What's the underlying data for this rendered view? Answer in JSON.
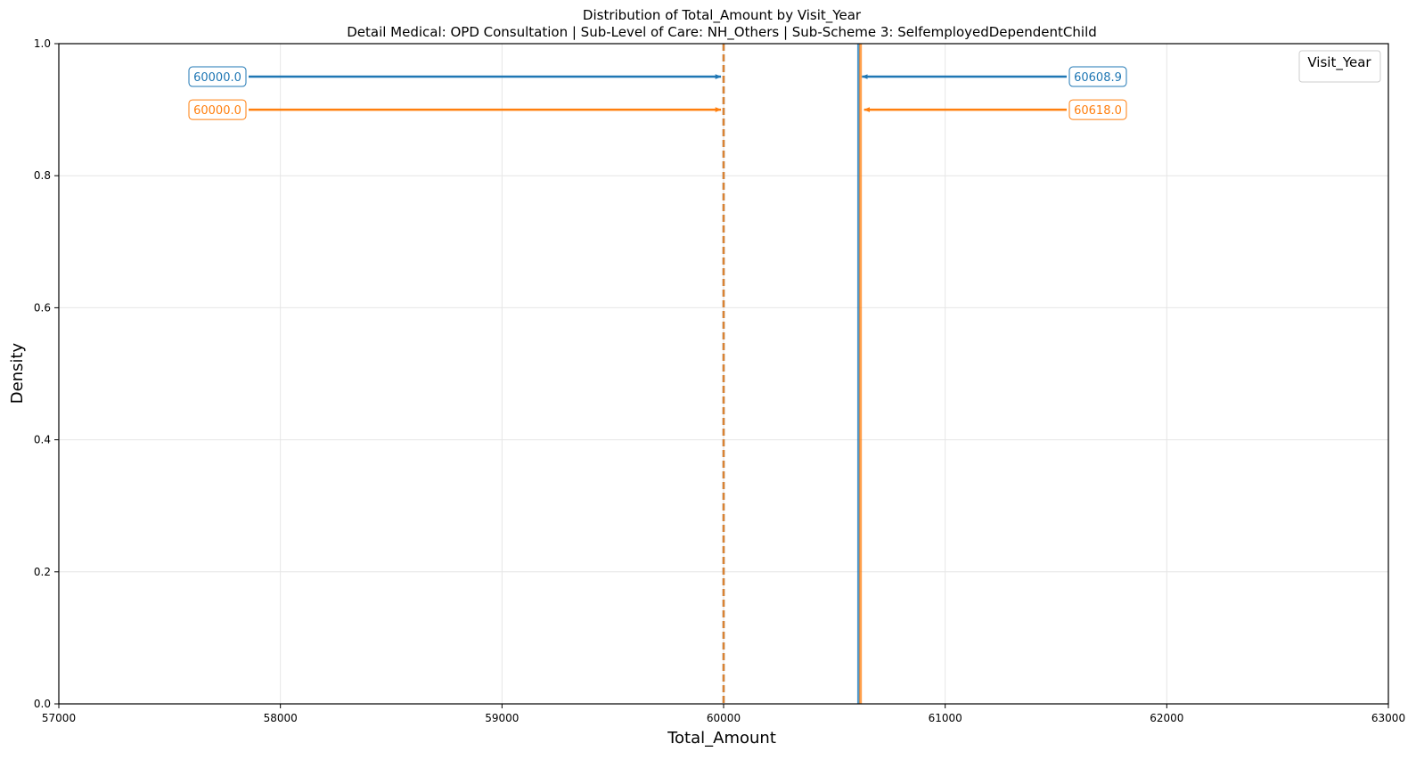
{
  "chart_data": {
    "type": "line",
    "title": "Distribution of Total_Amount by Visit_Year",
    "subtitle": "Detail Medical: OPD Consultation | Sub-Level of Care: NH_Others | Sub-Scheme 3: SelfemployedDependentChild",
    "xlabel": "Total_Amount",
    "ylabel": "Density",
    "xlim": [
      57000,
      63000
    ],
    "ylim": [
      0,
      1.0
    ],
    "xticks": [
      57000,
      58000,
      59000,
      60000,
      61000,
      62000,
      63000
    ],
    "xtick_labels": [
      "57000",
      "58000",
      "59000",
      "60000",
      "61000",
      "62000",
      "63000"
    ],
    "yticks": [
      0.0,
      0.2,
      0.4,
      0.6,
      0.8,
      1.0
    ],
    "ytick_labels": [
      "0.0",
      "0.2",
      "0.4",
      "0.6",
      "0.8",
      "1.0"
    ],
    "grid": true,
    "legend": {
      "title": "Visit_Year",
      "placement": "upper right",
      "entries": []
    },
    "series": [
      {
        "color": "#1f77b4",
        "mean": 60608.9,
        "median": 60000.0,
        "mean_label": "60608.9",
        "median_label": "60000.0",
        "annotation_y": 0.95
      },
      {
        "color": "#ff7f0e",
        "mean": 60618.0,
        "median": 60000.0,
        "mean_label": "60618.0",
        "median_label": "60000.0",
        "annotation_y": 0.9
      }
    ]
  }
}
